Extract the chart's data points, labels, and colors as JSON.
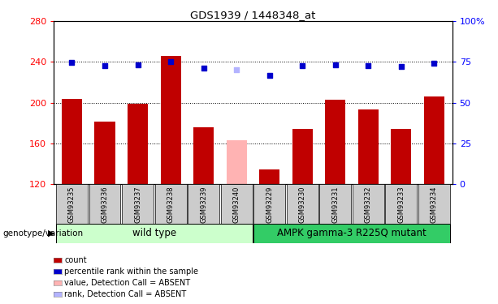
{
  "title": "GDS1939 / 1448348_at",
  "samples": [
    "GSM93235",
    "GSM93236",
    "GSM93237",
    "GSM93238",
    "GSM93239",
    "GSM93240",
    "GSM93229",
    "GSM93230",
    "GSM93231",
    "GSM93232",
    "GSM93233",
    "GSM93234"
  ],
  "counts": [
    204,
    181,
    199,
    246,
    176,
    null,
    134,
    174,
    203,
    193,
    174,
    206
  ],
  "absent_count": 163,
  "absent_index": 5,
  "ranks_pct": [
    74.5,
    72.5,
    73.0,
    75.3,
    71.3,
    null,
    66.6,
    72.5,
    73.1,
    72.5,
    72.2,
    74.4
  ],
  "absent_rank_pct": 70.3,
  "ylim_left": [
    120,
    280
  ],
  "ylim_right": [
    0,
    100
  ],
  "yticks_left": [
    120,
    160,
    200,
    240,
    280
  ],
  "yticks_right": [
    0,
    25,
    50,
    75,
    100
  ],
  "ytick_right_labels": [
    "0",
    "25",
    "50",
    "75",
    "100%"
  ],
  "bar_color": "#c00000",
  "absent_bar_color": "#ffb3b3",
  "rank_color": "#0000cc",
  "absent_rank_color": "#b3b3ff",
  "group1_label": "wild type",
  "group2_label": "AMPK gamma-3 R225Q mutant",
  "group1_bg": "#ccffcc",
  "group2_bg": "#33cc66",
  "bar_bg": "#cccccc",
  "genotype_label": "genotype/variation",
  "legend_items": [
    {
      "label": "count",
      "color": "#c00000"
    },
    {
      "label": "percentile rank within the sample",
      "color": "#0000cc"
    },
    {
      "label": "value, Detection Call = ABSENT",
      "color": "#ffb3b3"
    },
    {
      "label": "rank, Detection Call = ABSENT",
      "color": "#b3b3ff"
    }
  ]
}
